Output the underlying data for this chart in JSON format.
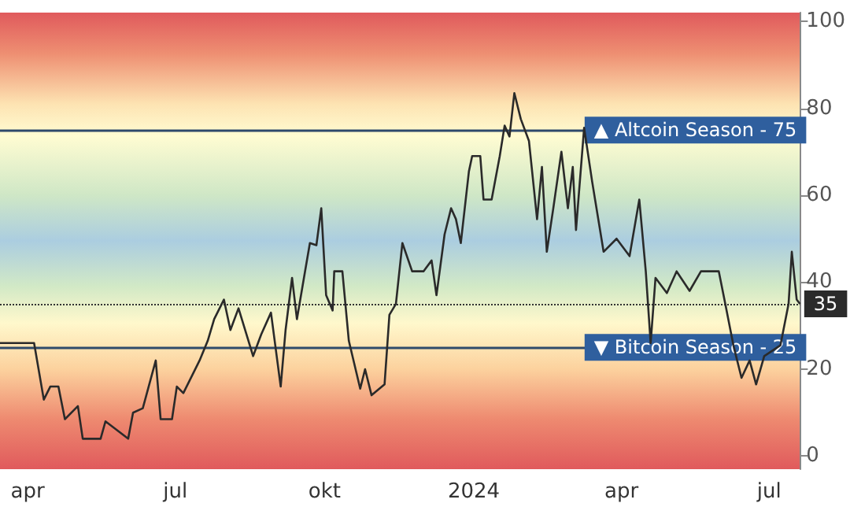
{
  "chart_data": {
    "type": "line",
    "x": [
      "2023-03-15",
      "2023-04-05",
      "2023-04-11",
      "2023-04-15",
      "2023-04-20",
      "2023-04-24",
      "2023-05-02",
      "2023-05-05",
      "2023-05-16",
      "2023-05-19",
      "2023-06-02",
      "2023-06-05",
      "2023-06-11",
      "2023-06-19",
      "2023-06-22",
      "2023-06-29",
      "2023-07-02",
      "2023-07-06",
      "2023-07-16",
      "2023-07-21",
      "2023-07-25",
      "2023-07-31",
      "2023-08-04",
      "2023-08-09",
      "2023-08-18",
      "2023-08-23",
      "2023-08-29",
      "2023-09-04",
      "2023-09-07",
      "2023-09-11",
      "2023-09-14",
      "2023-09-19",
      "2023-09-22",
      "2023-09-26",
      "2023-09-29",
      "2023-10-02",
      "2023-10-06",
      "2023-10-07",
      "2023-10-12",
      "2023-10-16",
      "2023-10-23",
      "2023-10-26",
      "2023-10-30",
      "2023-11-07",
      "2023-11-10",
      "2023-11-14",
      "2023-11-18",
      "2023-11-24",
      "2023-12-01",
      "2023-12-06",
      "2023-12-09",
      "2023-12-14",
      "2023-12-18",
      "2023-12-21",
      "2023-12-24",
      "2023-12-29",
      "2023-12-31",
      "2024-01-05",
      "2024-01-07",
      "2024-01-12",
      "2024-01-17",
      "2024-01-20",
      "2024-01-23",
      "2024-01-26",
      "2024-01-30",
      "2024-02-04",
      "2024-02-09",
      "2024-02-12",
      "2024-02-15",
      "2024-02-19",
      "2024-02-24",
      "2024-02-28",
      "2024-03-02",
      "2024-03-04",
      "2024-03-09",
      "2024-03-14",
      "2024-03-21",
      "2024-03-29",
      "2024-04-06",
      "2024-04-12",
      "2024-04-16",
      "2024-04-19",
      "2024-04-22",
      "2024-04-29",
      "2024-05-05",
      "2024-05-13",
      "2024-05-20",
      "2024-05-31",
      "2024-06-04",
      "2024-06-09",
      "2024-06-14",
      "2024-06-19",
      "2024-06-23",
      "2024-06-28",
      "2024-07-08",
      "2024-07-13",
      "2024-07-15",
      "2024-07-18",
      "2024-07-20"
    ],
    "series": [
      {
        "color": "#2a2a2a",
        "values": [
          26,
          26,
          13,
          16,
          16,
          8.5,
          11.5,
          4,
          4,
          8,
          4,
          10,
          11,
          22,
          8.5,
          8.5,
          16,
          14.5,
          22,
          26.5,
          31.5,
          36,
          29,
          34,
          23,
          28,
          33,
          16,
          29,
          41,
          31.5,
          42.5,
          49,
          48.5,
          57,
          37,
          33.5,
          42.5,
          42.5,
          26.5,
          15.5,
          20,
          14,
          16.5,
          32.5,
          35,
          49,
          42.5,
          42.5,
          45,
          37,
          51,
          57,
          54.5,
          49,
          65.5,
          69,
          69,
          59,
          59,
          69,
          76,
          73.5,
          83.5,
          77.5,
          72.5,
          54.5,
          66.5,
          47,
          57,
          70,
          57,
          66.5,
          52,
          75.5,
          63,
          47,
          50,
          46,
          59,
          42.5,
          26,
          41,
          37.5,
          42.5,
          38,
          42.5,
          42.5,
          35,
          25.5,
          18,
          22,
          16.5,
          23,
          25.5,
          35,
          47,
          36,
          35
        ]
      }
    ],
    "xlim": [
      "2023-03-15",
      "2024-07-20"
    ],
    "xticks": [
      {
        "value": "2023-04-01",
        "label": "apr"
      },
      {
        "value": "2023-07-01",
        "label": "jul"
      },
      {
        "value": "2023-10-01",
        "label": "okt"
      },
      {
        "value": "2024-01-01",
        "label": "2024"
      },
      {
        "value": "2024-04-01",
        "label": "apr"
      },
      {
        "value": "2024-07-01",
        "label": "jul"
      }
    ],
    "ylim": [
      -3,
      102
    ],
    "yticks": [
      0,
      20,
      40,
      60,
      80,
      100
    ],
    "ref_lines": [
      {
        "axis": "y",
        "value": 75,
        "label": "▲ Altcoin Season - 75",
        "color": "#2e4a6b",
        "line_style": "solid"
      },
      {
        "axis": "y",
        "value": 25,
        "label": "▼ Bitcoin Season - 25",
        "color": "#2e4a6b",
        "line_style": "solid"
      },
      {
        "axis": "y",
        "value": 35,
        "label": "35",
        "color": "#333333",
        "line_style": "dotted"
      }
    ],
    "grid": false,
    "marker": "none",
    "line_style": "solid"
  }
}
